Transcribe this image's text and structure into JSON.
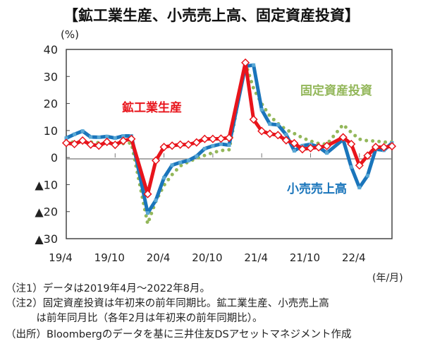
{
  "chart_data": {
    "type": "line",
    "title": "【鉱工業生産、小売売上高、固定資産投資】",
    "ylabel": "(%)",
    "xlabel": "(年/月)",
    "ylim": [
      -30,
      40
    ],
    "yticks": [
      40,
      30,
      20,
      10,
      0,
      -10,
      -20,
      -30
    ],
    "ytick_labels": [
      "40",
      "30",
      "20",
      "10",
      "0",
      "▲10",
      "▲20",
      "▲30"
    ],
    "x_start": "2019/4",
    "x_end": "2022/8",
    "xtick_labels": [
      "19/4",
      "19/10",
      "20/4",
      "20/10",
      "21/4",
      "21/10",
      "22/4"
    ],
    "xtick_month_index": [
      0,
      6,
      12,
      18,
      24,
      30,
      36
    ],
    "series": [
      {
        "name": "鉱工業生産",
        "color": "#e8141b",
        "style": "solid-diamond",
        "values": [
          5.4,
          5.0,
          6.3,
          4.8,
          4.4,
          5.8,
          4.7,
          6.2,
          6.9,
          null,
          -13.5,
          -1.1,
          3.9,
          4.4,
          4.8,
          4.8,
          5.6,
          6.9,
          6.9,
          7.0,
          7.3,
          null,
          35.1,
          14.1,
          9.8,
          8.8,
          8.3,
          6.4,
          5.3,
          3.1,
          3.5,
          3.8,
          4.3,
          null,
          7.5,
          5.0,
          -2.9,
          0.7,
          3.9,
          3.8,
          4.2
        ]
      },
      {
        "name": "小売売上高",
        "color": "#1a75bb",
        "style": "solid-square",
        "values": [
          7.2,
          8.6,
          9.8,
          7.6,
          7.5,
          7.8,
          7.2,
          8.0,
          8.0,
          null,
          -20.5,
          -15.8,
          -7.5,
          -2.8,
          -1.8,
          -1.1,
          0.5,
          3.3,
          4.3,
          5.0,
          4.6,
          null,
          33.8,
          34.2,
          17.7,
          12.4,
          12.1,
          8.5,
          2.5,
          4.4,
          4.9,
          3.9,
          1.7,
          null,
          6.7,
          -3.5,
          -11.1,
          -6.7,
          3.1,
          2.7,
          5.4
        ]
      },
      {
        "name": "固定資産投資",
        "color": "#93b75a",
        "style": "dotted",
        "values": [
          6.1,
          5.6,
          5.8,
          5.7,
          5.5,
          5.4,
          5.2,
          5.2,
          5.4,
          null,
          -24.5,
          -16.1,
          -10.3,
          -6.3,
          -3.1,
          -1.6,
          -0.3,
          0.8,
          1.8,
          2.6,
          2.9,
          null,
          35.0,
          25.6,
          19.9,
          15.4,
          12.6,
          10.3,
          8.9,
          7.3,
          6.1,
          5.2,
          4.9,
          null,
          12.2,
          9.3,
          6.8,
          6.2,
          6.1,
          5.7,
          5.8
        ]
      }
    ]
  },
  "notes": [
    "（注1）データは2019年4月～2022年8月。",
    "（注2）固定資産投資は年初来の前年同期比。鉱工業生産、小売売上高",
    "　　　は前年同月比（各年2月は年初来の前年同期比）。",
    "（出所）Bloombergのデータを基に三井住友DSアセットマネジメント作成"
  ]
}
